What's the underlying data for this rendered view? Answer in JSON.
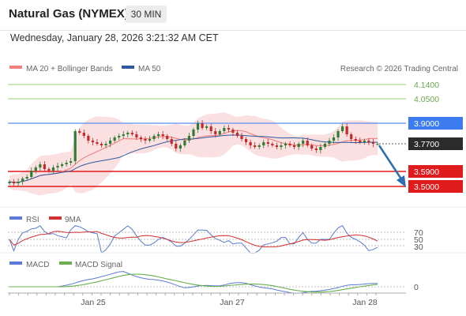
{
  "header": {
    "title": "Natural Gas (NYMEX)",
    "timeframe": "30 MIN",
    "datetime": "Wednesday, January 28, 2026 3:21:32 AM CET"
  },
  "legend": {
    "ma20": "MA 20 + Bollinger Bands",
    "ma50": "MA 50",
    "copyright": "Research © 2026 Trading Central",
    "rsi": "RSI",
    "rsi_ma": "9MA",
    "macd": "MACD",
    "macd_signal": "MACD Signal"
  },
  "colors": {
    "ma20": "#f08080",
    "ma50": "#2c5aa0",
    "bollinger_fill": "#fadadd",
    "resistance": "#9cd076",
    "pivot": "#5b8def",
    "support": "#e01b1b",
    "current": "#2b2b2b",
    "arrow": "#2d6db5",
    "candle_up": "#2e7d32",
    "candle_down": "#c62828",
    "rsi_line": "#5b7bd5",
    "rsi_ma": "#d32f2f",
    "macd_line": "#5b7bd5",
    "macd_signal_line": "#6ab04c"
  },
  "levels": {
    "r2": "4.1400",
    "r1": "4.0500",
    "pivot": "3.9000",
    "current": "3.7700",
    "s1": "3.5900",
    "s2": "3.5000"
  },
  "rsi_axis": {
    "t70": "70",
    "t50": "50",
    "t30": "30"
  },
  "macd_axis": {
    "zero": "0"
  },
  "x_axis": {
    "t1": "Jan 25",
    "t2": "Jan 27",
    "t3": "Jan 28"
  },
  "chart_data": {
    "type": "candlestick",
    "title": "Natural Gas (NYMEX)",
    "y_labels": [
      "4.1400",
      "4.0500",
      "3.9000",
      "3.7700",
      "3.5900",
      "3.5000"
    ],
    "x_labels": [
      "Jan 25",
      "Jan 27",
      "Jan 28"
    ],
    "approx_close": [
      3.53,
      3.52,
      3.53,
      3.55,
      3.56,
      3.6,
      3.62,
      3.64,
      3.61,
      3.6,
      3.62,
      3.63,
      3.64,
      3.65,
      3.66,
      3.85,
      3.84,
      3.82,
      3.79,
      3.78,
      3.77,
      3.76,
      3.77,
      3.79,
      3.81,
      3.82,
      3.83,
      3.84,
      3.83,
      3.81,
      3.8,
      3.79,
      3.8,
      3.82,
      3.83,
      3.82,
      3.8,
      3.77,
      3.74,
      3.76,
      3.79,
      3.82,
      3.86,
      3.9,
      3.87,
      3.88,
      3.85,
      3.83,
      3.85,
      3.87,
      3.86,
      3.84,
      3.82,
      3.8,
      3.78,
      3.76,
      3.75,
      3.76,
      3.78,
      3.77,
      3.76,
      3.75,
      3.76,
      3.77,
      3.76,
      3.75,
      3.77,
      3.79,
      3.76,
      3.74,
      3.73,
      3.75,
      3.77,
      3.79,
      3.81,
      3.85,
      3.88,
      3.83,
      3.8,
      3.79,
      3.78,
      3.79,
      3.78,
      3.77,
      3.77
    ]
  }
}
